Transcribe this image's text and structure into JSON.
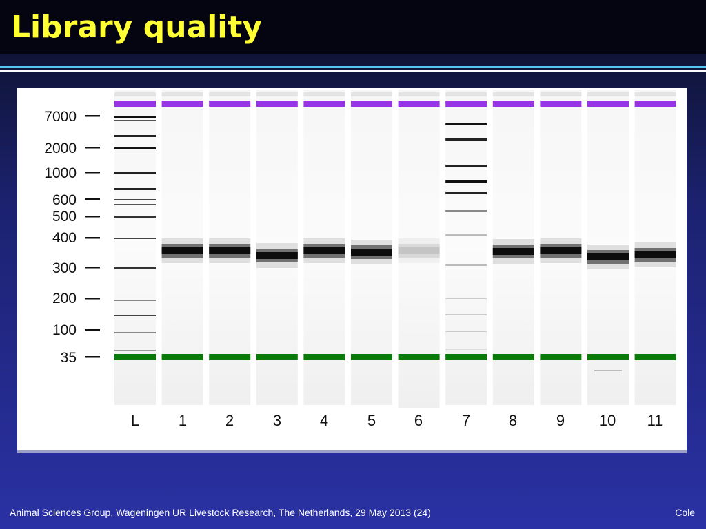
{
  "slide": {
    "title": "Library quality",
    "footer_left": "Animal Sciences Group, Wageningen UR Livestock Research, The Netherlands, 29 May 2013 (24)",
    "footer_right": "Cole"
  },
  "gel": {
    "size_markers": [
      "7000",
      "2000",
      "1000",
      "600",
      "500",
      "400",
      "300",
      "200",
      "100",
      "35"
    ],
    "lanes": [
      "L",
      "1",
      "2",
      "3",
      "4",
      "5",
      "6",
      "7",
      "8",
      "9",
      "10",
      "11"
    ],
    "upper_marker_color": "#9933e6",
    "lower_marker_color": "#0a7a0a"
  }
}
